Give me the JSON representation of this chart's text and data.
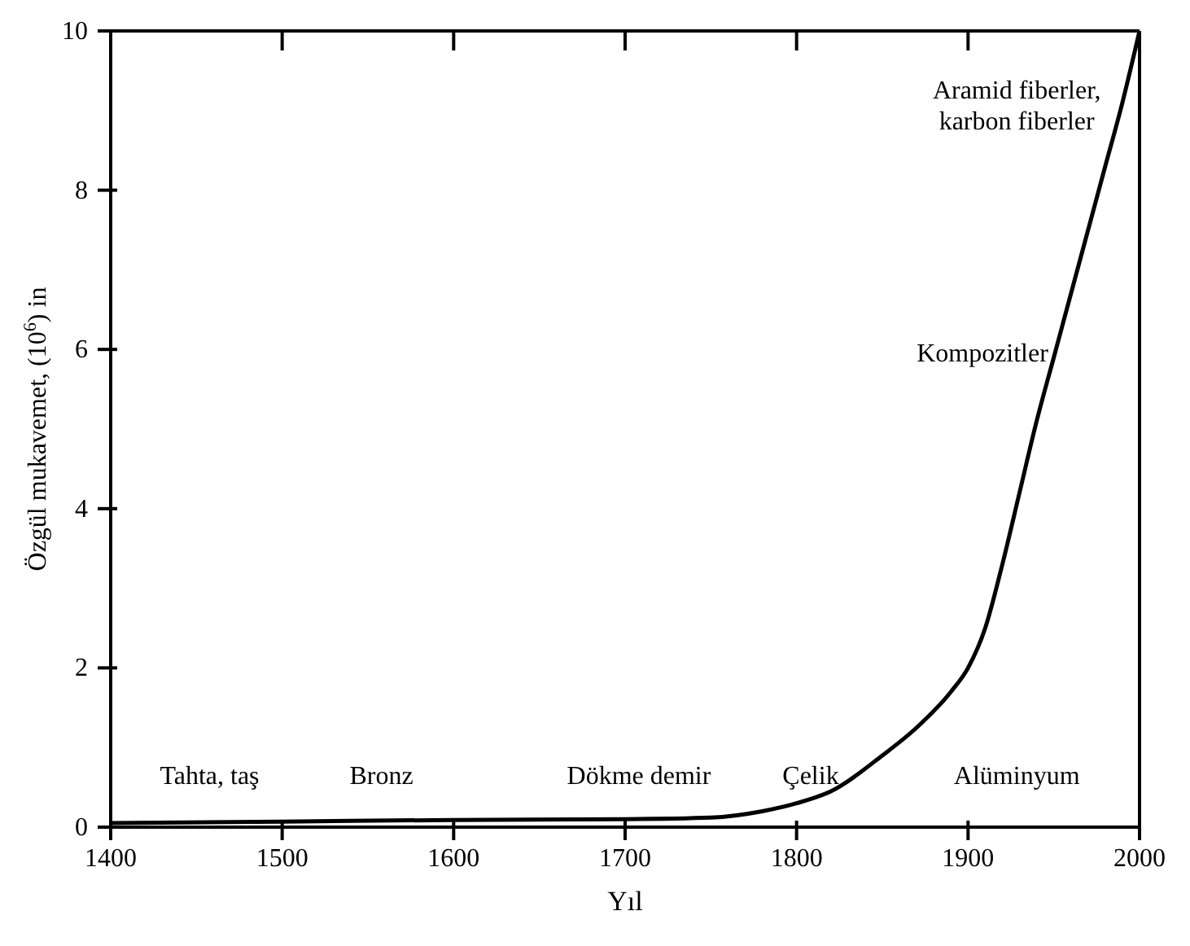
{
  "chart_data": {
    "type": "line",
    "xlabel": "Yıl",
    "ylabel": "Özgül mukavemet, (10$^{6}$) in",
    "x": [
      1400,
      1500,
      1600,
      1700,
      1750,
      1780,
      1800,
      1820,
      1850,
      1870,
      1890,
      1900,
      1910,
      1920,
      1930,
      1940,
      1950,
      1960,
      1970,
      1980,
      1990,
      2000
    ],
    "series": [
      {
        "color": "#000000",
        "values": [
          0.05,
          0.07,
          0.09,
          0.1,
          0.12,
          0.2,
          0.3,
          0.45,
          0.9,
          1.25,
          1.7,
          2.0,
          2.5,
          3.3,
          4.2,
          5.1,
          5.9,
          6.7,
          7.5,
          8.3,
          9.1,
          10
        ]
      }
    ],
    "xlim": [
      1400,
      2000
    ],
    "xticks": [
      1400,
      1500,
      1600,
      1700,
      1800,
      1900,
      2000
    ],
    "ylim": [
      0,
      10
    ],
    "yticks": [
      0,
      2,
      4,
      6,
      8,
      10
    ],
    "grid": false,
    "legend": false,
    "marker": "none",
    "line_style": "solid",
    "annotations": [
      "Tahta, taş",
      "Bronz",
      "Dökme demir",
      "Çelik",
      "Alüminyum",
      "Kompozitler",
      "Aramid fiberler,\nkarbon fiberler"
    ]
  }
}
